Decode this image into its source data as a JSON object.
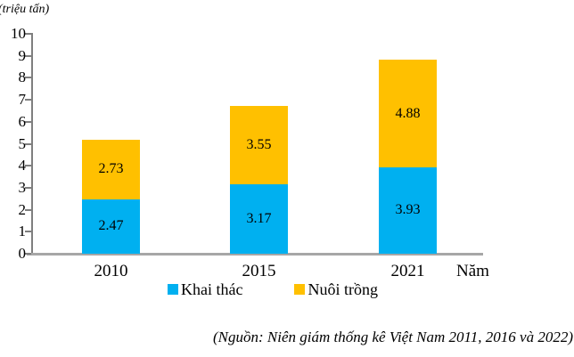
{
  "chart_data": {
    "type": "bar",
    "stacked": true,
    "categories": [
      "2010",
      "2015",
      "2021"
    ],
    "series": [
      {
        "name": "Khai thác",
        "color": "#00B0F0",
        "values": [
          2.47,
          3.17,
          3.93
        ]
      },
      {
        "name": "Nuôi trồng",
        "color": "#FFC000",
        "values": [
          2.73,
          3.55,
          4.88
        ]
      }
    ],
    "totals": [
      5.2,
      6.72,
      8.81
    ],
    "ylabel": "(triệu tấn)",
    "xlabel": "Năm",
    "ylim": [
      0,
      10
    ],
    "ytick_step": 1,
    "grid": false,
    "legend_position": "bottom",
    "data_labels": "inside-center",
    "axis_colors": {
      "y_axis": "#7f7f7f",
      "x_axis": "#a6a6a6"
    },
    "source": "(Nguồn: Niên giám thống kê Việt Nam 2011, 2016 và 2022)"
  }
}
